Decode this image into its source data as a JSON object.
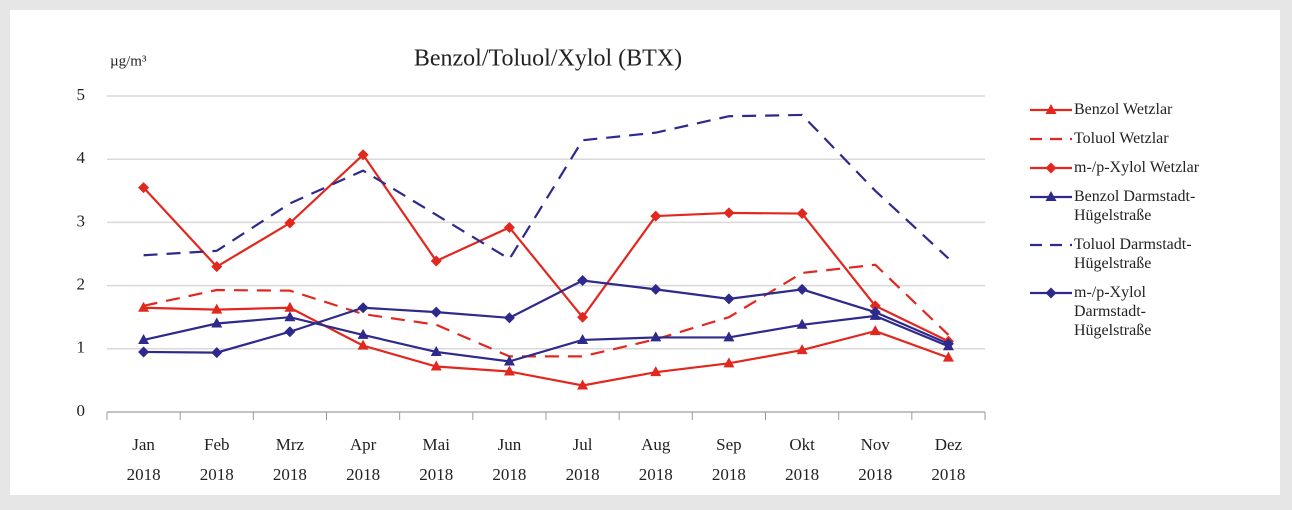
{
  "chart_data": {
    "type": "line",
    "title": "Benzol/Toluol/Xylol (BTX)",
    "y_unit": "µg/m³",
    "categories": [
      "Jan 2018",
      "Feb 2018",
      "Mrz 2018",
      "Apr 2018",
      "Mai 2018",
      "Jun 2018",
      "Jul 2018",
      "Aug 2018",
      "Sep 2018",
      "Okt 2018",
      "Nov 2018",
      "Dez 2018"
    ],
    "ylim": [
      0,
      5
    ],
    "yticks": [
      0,
      1,
      2,
      3,
      4,
      5
    ],
    "grid": true,
    "series": [
      {
        "name": "Benzol Wetzlar",
        "color": "#e2281e",
        "dash": false,
        "marker": "triangle",
        "values": [
          1.65,
          1.62,
          1.65,
          1.05,
          0.72,
          0.64,
          0.42,
          0.63,
          0.77,
          0.98,
          1.28,
          0.86
        ]
      },
      {
        "name": "Toluol Wetzlar",
        "color": "#e2281e",
        "dash": true,
        "marker": "none",
        "values": [
          1.68,
          1.93,
          1.92,
          1.55,
          1.38,
          0.88,
          0.88,
          1.15,
          1.5,
          2.2,
          2.33,
          1.22
        ]
      },
      {
        "name": "m-/p-Xylol Wetzlar",
        "color": "#e2281e",
        "dash": false,
        "marker": "diamond",
        "values": [
          3.55,
          2.3,
          2.99,
          4.07,
          2.39,
          2.92,
          1.5,
          3.1,
          3.15,
          3.14,
          1.68,
          1.12
        ]
      },
      {
        "name": "Benzol Darmstadt-Hügelstraße",
        "color": "#2e2a8c",
        "dash": false,
        "marker": "triangle",
        "values": [
          1.14,
          1.4,
          1.5,
          1.22,
          0.95,
          0.8,
          1.14,
          1.18,
          1.18,
          1.38,
          1.52,
          1.04
        ]
      },
      {
        "name": "Toluol Darmstadt-Hügelstraße",
        "color": "#2e2a8c",
        "dash": true,
        "marker": "none",
        "values": [
          2.48,
          2.55,
          3.3,
          3.82,
          3.12,
          2.42,
          4.3,
          4.42,
          4.68,
          4.7,
          3.5,
          2.43
        ]
      },
      {
        "name": "m-/p-Xylol Darmstadt-Hügelstraße",
        "color": "#2e2a8c",
        "dash": false,
        "marker": "diamond",
        "values": [
          0.95,
          0.94,
          1.27,
          1.65,
          1.58,
          1.49,
          2.08,
          1.94,
          1.79,
          1.94,
          1.58,
          1.08
        ]
      }
    ]
  }
}
